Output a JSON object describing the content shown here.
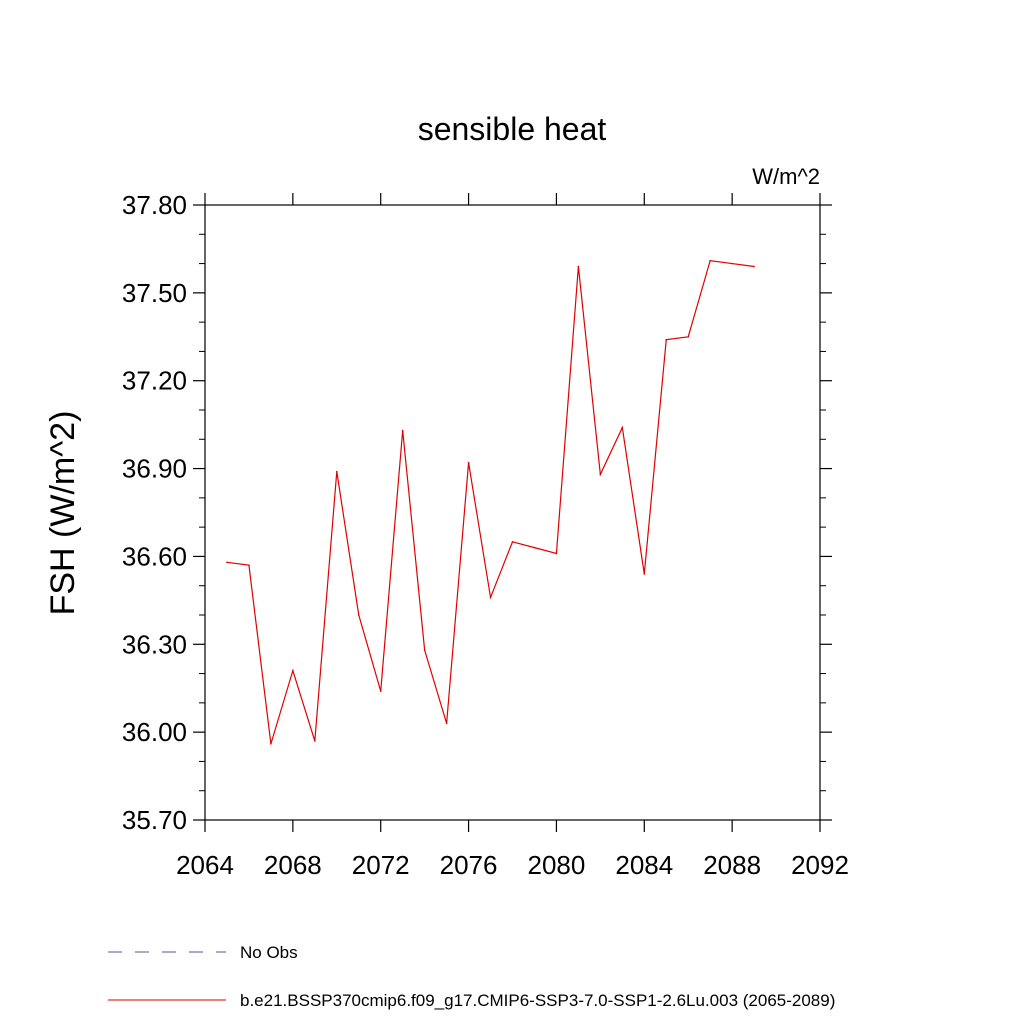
{
  "chart_data": {
    "type": "line",
    "title": "sensible heat",
    "units_label": "W/m^2",
    "ylabel": "FSH  (W/m^2)",
    "xlabel": "",
    "xlim": [
      2064,
      2092
    ],
    "ylim": [
      35.7,
      37.8
    ],
    "x_ticks": [
      2064,
      2068,
      2072,
      2076,
      2080,
      2084,
      2088,
      2092
    ],
    "x_tick_labels": [
      "2064",
      "2068",
      "2072",
      "2076",
      "2080",
      "2084",
      "2088",
      "2092"
    ],
    "y_ticks": [
      35.7,
      36.0,
      36.3,
      36.6,
      36.9,
      37.2,
      37.5,
      37.8
    ],
    "y_tick_labels": [
      "35.70",
      "36.00",
      "36.30",
      "36.60",
      "36.90",
      "37.20",
      "37.50",
      "37.80"
    ],
    "grid": false,
    "legend_position": "bottom",
    "series": [
      {
        "name": "b.e21.BSSP370cmip6.f09_g17.CMIP6-SSP3-7.0-SSP1-2.6Lu.003 (2065-2089)",
        "color": "#e00000",
        "dash": "solid",
        "x": [
          2065,
          2066,
          2067,
          2068,
          2069,
          2070,
          2071,
          2072,
          2073,
          2074,
          2075,
          2076,
          2077,
          2078,
          2079,
          2080,
          2081,
          2082,
          2083,
          2084,
          2085,
          2086,
          2087,
          2088,
          2089
        ],
        "y": [
          36.58,
          36.57,
          35.96,
          36.21,
          35.97,
          36.89,
          36.4,
          36.14,
          37.03,
          36.28,
          36.03,
          36.92,
          36.46,
          36.65,
          36.63,
          36.61,
          37.59,
          36.88,
          37.04,
          36.54,
          37.34,
          37.35,
          37.61,
          37.6,
          37.59
        ]
      }
    ],
    "legend": [
      {
        "label": "No Obs",
        "color": "#5a4fa3",
        "dash": "dashed"
      },
      {
        "label": "b.e21.BSSP370cmip6.f09_g17.CMIP6-SSP3-7.0-SSP1-2.6Lu.003 (2065-2089)",
        "color": "#e00000",
        "dash": "solid"
      }
    ]
  }
}
